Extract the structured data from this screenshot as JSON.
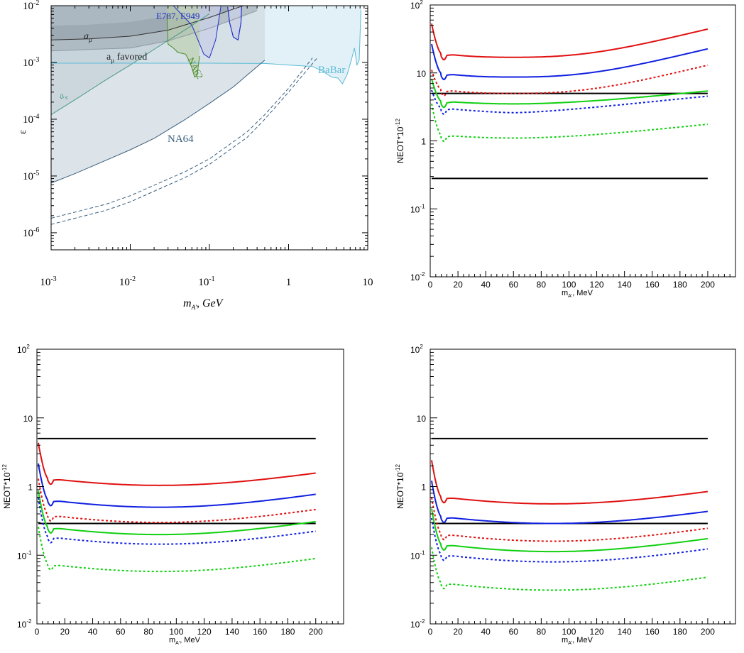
{
  "chart_data": [
    {
      "id": "exclusion",
      "type": "area",
      "xscale": "log",
      "yscale": "log",
      "xlim": [
        0.001,
        10
      ],
      "ylim": [
        5e-07,
        0.01
      ],
      "xlabel": "m_{A'}, GeV",
      "ylabel": "ε",
      "xticks": [
        0.001,
        0.01,
        0.1,
        1,
        10
      ],
      "xtick_labels": [
        "10^-3",
        "10^-2",
        "10^-1",
        "1",
        "10"
      ],
      "yticks": [
        1e-06,
        1e-05,
        0.0001,
        0.001,
        0.01
      ],
      "ytick_labels": [
        "10^-6",
        "10^-5",
        "10^-4",
        "10^-3",
        "10^-2"
      ],
      "annotations": [
        "a_μ",
        "a_μ  favored",
        "a_e",
        "E787, E949",
        "NA62",
        "BaBar",
        "NA64"
      ],
      "series": [
        {
          "name": "a_μ",
          "color": "#333333",
          "x": [
            0.001,
            0.003,
            0.01,
            0.03,
            0.1,
            0.2,
            0.4
          ],
          "y": [
            0.0025,
            0.0026,
            0.0029,
            0.0037,
            0.0062,
            0.0087,
            0.012
          ]
        },
        {
          "name": "a_μ  favored",
          "color": "#8f9aa3",
          "x": [
            0.001,
            0.01,
            0.03,
            0.1,
            0.2,
            0.4
          ],
          "y": [
            0.0016,
            0.0018,
            0.0024,
            0.004,
            0.0057,
            0.0082
          ]
        },
        {
          "name": "a_e",
          "color": "#4a9a84",
          "x": [
            0.001,
            0.002,
            0.005,
            0.01,
            0.02,
            0.05,
            0.1
          ],
          "y": [
            0.00012,
            0.00022,
            0.0005,
            0.0009,
            0.0017,
            0.0038,
            0.0072
          ]
        },
        {
          "name": "BaBar",
          "color": "#5bbbd6",
          "x": [
            0.001,
            0.1,
            0.5,
            1,
            2,
            2.7,
            3.5,
            4.2,
            4.8,
            5.5,
            6.2,
            6.8,
            7.3,
            7.8,
            8.2
          ],
          "y": [
            0.00097,
            0.00097,
            0.00096,
            0.0009,
            0.00085,
            0.0007,
            0.00055,
            0.00053,
            0.00042,
            0.00062,
            0.0011,
            0.0018,
            0.0009,
            0.0011,
            0.0085
          ]
        },
        {
          "name": "NA64",
          "color": "#3a5f7f",
          "x": [
            0.001,
            0.002,
            0.005,
            0.01,
            0.02,
            0.05,
            0.1,
            0.2,
            0.3,
            0.5
          ],
          "y": [
            7.5e-06,
            1.1e-05,
            1.9e-05,
            2.9e-05,
            4.6e-05,
            0.0001,
            0.00019,
            0.00037,
            0.0006,
            0.0011
          ]
        },
        {
          "name": "NA62",
          "color": "#4a8a2a",
          "x": [
            0.029,
            0.03,
            0.035,
            0.04,
            0.05,
            0.055,
            0.06,
            0.065,
            0.07,
            0.075
          ],
          "y": [
            0.007,
            0.0021,
            0.0018,
            0.0015,
            0.0014,
            0.0011,
            0.0008,
            0.00055,
            0.0006,
            0.0013
          ]
        },
        {
          "name": "E787, E949",
          "color": "#2230c8",
          "x": [
            0.035,
            0.06,
            0.085,
            0.1,
            0.12,
            0.14
          ],
          "y": [
            0.01,
            0.0045,
            0.0014,
            0.0012,
            0.0025,
            0.01
          ]
        },
        {
          "name": "",
          "color": "#2230c8",
          "x": [
            0.17,
            0.18,
            0.2,
            0.23,
            0.25,
            0.255
          ],
          "y": [
            0.0095,
            0.005,
            0.0028,
            0.0025,
            0.005,
            0.0095
          ]
        },
        {
          "name": "",
          "color": "#3a5f7f",
          "style": "dashed",
          "x": [
            0.001,
            0.005,
            0.01,
            0.05,
            0.1,
            0.3,
            0.5,
            1,
            2
          ],
          "y": [
            1.8e-06,
            3.2e-06,
            4.5e-06,
            1.2e-05,
            2e-05,
            6e-05,
            0.00012,
            0.00035,
            0.0012
          ]
        },
        {
          "name": "",
          "color": "#3a5f7f",
          "style": "dashed",
          "x": [
            0.001,
            0.005,
            0.01,
            0.05,
            0.1,
            0.3,
            0.5,
            1,
            2.3
          ],
          "y": [
            1.4e-06,
            2.5e-06,
            3.5e-06,
            9.5e-06,
            1.6e-05,
            4.8e-05,
            0.0001,
            0.0003,
            0.0012
          ]
        }
      ]
    },
    {
      "id": "neot_1",
      "type": "line",
      "yscale": "log",
      "xlim": [
        0,
        220
      ],
      "ylim": [
        0.01,
        100
      ],
      "xlabel": "m_{A'}, MeV",
      "ylabel": "NEOT*10^{-12}",
      "xticks": [
        0,
        20,
        40,
        60,
        80,
        100,
        120,
        140,
        160,
        180,
        200
      ],
      "ytick_labels": [
        "10^{-2}",
        "10^{-1}",
        "1",
        "10",
        "10^{2}"
      ],
      "hlines": [
        5,
        0.28
      ],
      "series": [
        {
          "color": "#e01010",
          "style": "solid",
          "params": {
            "base": 17,
            "x0": 60,
            "k": 1.6,
            "e": 2.5,
            "peak": 60,
            "dip": 0.9
          }
        },
        {
          "color": "#1020e0",
          "style": "solid",
          "params": {
            "base": 8.7,
            "x0": 60,
            "k": 1.6,
            "e": 2.5,
            "peak": 30,
            "dip": 0.9
          }
        },
        {
          "color": "#e01010",
          "style": "dotted",
          "params": {
            "base": 5.0,
            "x0": 60,
            "k": 1.6,
            "e": 2.5,
            "peak": 12,
            "dip": 0.9
          }
        },
        {
          "color": "#10d010",
          "style": "solid",
          "params": {
            "base": 3.5,
            "x0": 60,
            "k": 0.55,
            "e": 1.8,
            "peak": 9,
            "dip": 0.9
          }
        },
        {
          "color": "#1020e0",
          "style": "dotted",
          "params": {
            "base": 2.6,
            "x0": 60,
            "k": 0.75,
            "e": 1.5,
            "peak": 6,
            "dip": 0.9
          }
        },
        {
          "color": "#10d010",
          "style": "dotted",
          "params": {
            "base": 1.1,
            "x0": 60,
            "k": 0.6,
            "e": 1.8,
            "peak": 4,
            "dip": 0.9
          }
        }
      ]
    },
    {
      "id": "neot_2",
      "type": "line",
      "yscale": "log",
      "xlim": [
        0,
        220
      ],
      "ylim": [
        0.01,
        100
      ],
      "xlabel": "m_{A'}, MeV",
      "ylabel": "NEOT*10^{-12}",
      "xticks": [
        0,
        20,
        40,
        60,
        80,
        100,
        120,
        140,
        160,
        180,
        200
      ],
      "ytick_labels": [
        "10^{-2}",
        "10^{-1}",
        "1",
        "10",
        "10^{2}"
      ],
      "hlines": [
        5,
        0.29
      ],
      "series": [
        {
          "color": "#e01010",
          "style": "solid",
          "params": {
            "base": 1.04,
            "x0": 88,
            "k": 0.8,
            "e": 2,
            "peak": 5,
            "dip": 0.92
          }
        },
        {
          "color": "#1020e0",
          "style": "solid",
          "params": {
            "base": 0.5,
            "x0": 88,
            "k": 0.85,
            "e": 2,
            "peak": 2.5,
            "dip": 0.92
          }
        },
        {
          "color": "#e01010",
          "style": "dotted",
          "params": {
            "base": 0.3,
            "x0": 88,
            "k": 0.85,
            "e": 2,
            "peak": 1.5,
            "dip": 0.92
          }
        },
        {
          "color": "#10d010",
          "style": "solid",
          "params": {
            "base": 0.2,
            "x0": 88,
            "k": 0.85,
            "e": 2,
            "peak": 1.0,
            "dip": 0.92
          }
        },
        {
          "color": "#1020e0",
          "style": "dotted",
          "params": {
            "base": 0.145,
            "x0": 88,
            "k": 0.85,
            "e": 2,
            "peak": 0.8,
            "dip": 0.92
          }
        },
        {
          "color": "#10d010",
          "style": "dotted",
          "params": {
            "base": 0.058,
            "x0": 88,
            "k": 0.85,
            "e": 2,
            "peak": 0.3,
            "dip": 0.92
          }
        }
      ]
    },
    {
      "id": "neot_3",
      "type": "line",
      "yscale": "log",
      "xlim": [
        0,
        220
      ],
      "ylim": [
        0.01,
        100
      ],
      "xlabel": "m_{A'}, MeV",
      "ylabel": "NEOT*10^{-12}",
      "xticks": [
        0,
        20,
        40,
        60,
        80,
        100,
        120,
        140,
        160,
        180,
        200
      ],
      "ytick_labels": [
        "10^{-2}",
        "10^{-1}",
        "1",
        "10",
        "10^{2}"
      ],
      "hlines": [
        5,
        0.29
      ],
      "series": [
        {
          "color": "#e01010",
          "style": "solid",
          "params": {
            "base": 0.56,
            "x0": 88,
            "k": 0.8,
            "e": 2,
            "peak": 2.8,
            "dip": 0.92
          }
        },
        {
          "color": "#1020e0",
          "style": "solid",
          "params": {
            "base": 0.29,
            "x0": 88,
            "k": 0.78,
            "e": 2,
            "peak": 1.4,
            "dip": 0.92
          }
        },
        {
          "color": "#e01010",
          "style": "dotted",
          "params": {
            "base": 0.16,
            "x0": 88,
            "k": 0.85,
            "e": 2,
            "peak": 0.8,
            "dip": 0.92
          }
        },
        {
          "color": "#10d010",
          "style": "solid",
          "params": {
            "base": 0.113,
            "x0": 88,
            "k": 0.85,
            "e": 2,
            "peak": 0.55,
            "dip": 0.92
          }
        },
        {
          "color": "#1020e0",
          "style": "dotted",
          "params": {
            "base": 0.08,
            "x0": 88,
            "k": 0.85,
            "e": 2,
            "peak": 0.4,
            "dip": 0.92
          }
        },
        {
          "color": "#10d010",
          "style": "dotted",
          "params": {
            "base": 0.031,
            "x0": 88,
            "k": 0.85,
            "e": 2,
            "peak": 0.15,
            "dip": 0.92
          }
        }
      ]
    }
  ]
}
